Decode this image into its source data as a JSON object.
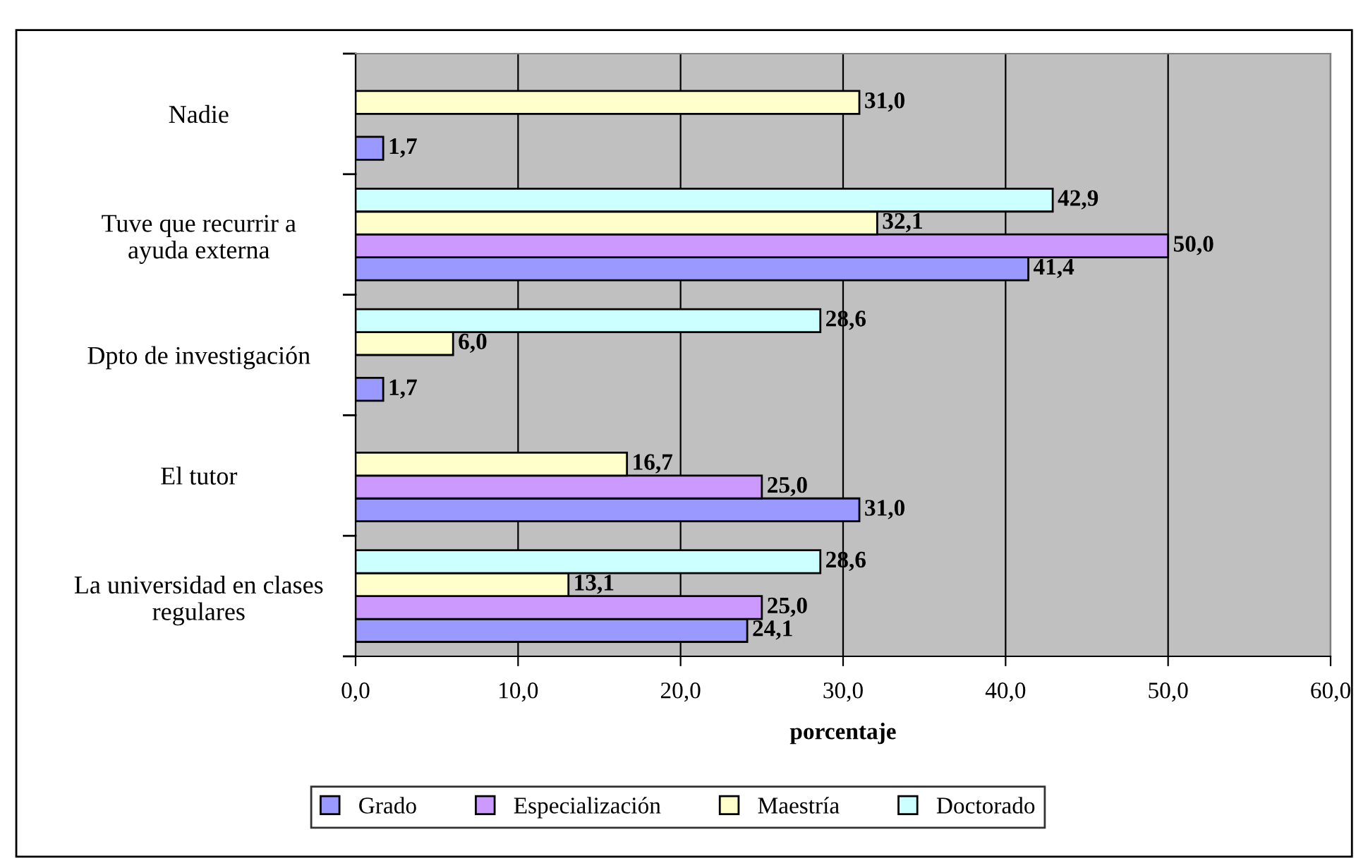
{
  "chart_data": {
    "type": "bar",
    "orientation": "horizontal",
    "xlabel": "porcentaje",
    "categories": [
      "Nadie",
      "Tuve que recurrir a\nayuda externa",
      "Dpto de investigación",
      "El tutor",
      "La universidad en clases\nregulares"
    ],
    "series": [
      {
        "name": "Grado",
        "color": "#9999ff",
        "values": [
          1.7,
          41.4,
          1.7,
          31.0,
          24.1
        ],
        "value_labels": [
          "1,7",
          "41,4",
          "1,7",
          "31,0",
          "24,1"
        ]
      },
      {
        "name": "Especialización",
        "color": "#cc99ff",
        "values": [
          null,
          50.0,
          null,
          25.0,
          25.0
        ],
        "value_labels": [
          null,
          "50,0",
          null,
          "25,0",
          "25,0"
        ]
      },
      {
        "name": "Maestría",
        "color": "#ffffcc",
        "values": [
          31.0,
          32.1,
          6.0,
          16.7,
          13.1
        ],
        "value_labels": [
          "31,0",
          "32,1",
          "6,0",
          "16,7",
          "13,1"
        ]
      },
      {
        "name": "Doctorado",
        "color": "#ccffff",
        "values": [
          null,
          42.9,
          28.6,
          null,
          28.6
        ],
        "value_labels": [
          null,
          "42,9",
          "28,6",
          null,
          "28,6"
        ]
      }
    ],
    "xlim": [
      0,
      60
    ],
    "xticks": [
      {
        "value": 0,
        "label": "0,0"
      },
      {
        "value": 10,
        "label": "10,0"
      },
      {
        "value": 20,
        "label": "20,0"
      },
      {
        "value": 30,
        "label": "30,0"
      },
      {
        "value": 40,
        "label": "40,0"
      },
      {
        "value": 50,
        "label": "50,0"
      },
      {
        "value": 60,
        "label": "60,0"
      }
    ],
    "grid": "x",
    "legend": "bottom"
  }
}
